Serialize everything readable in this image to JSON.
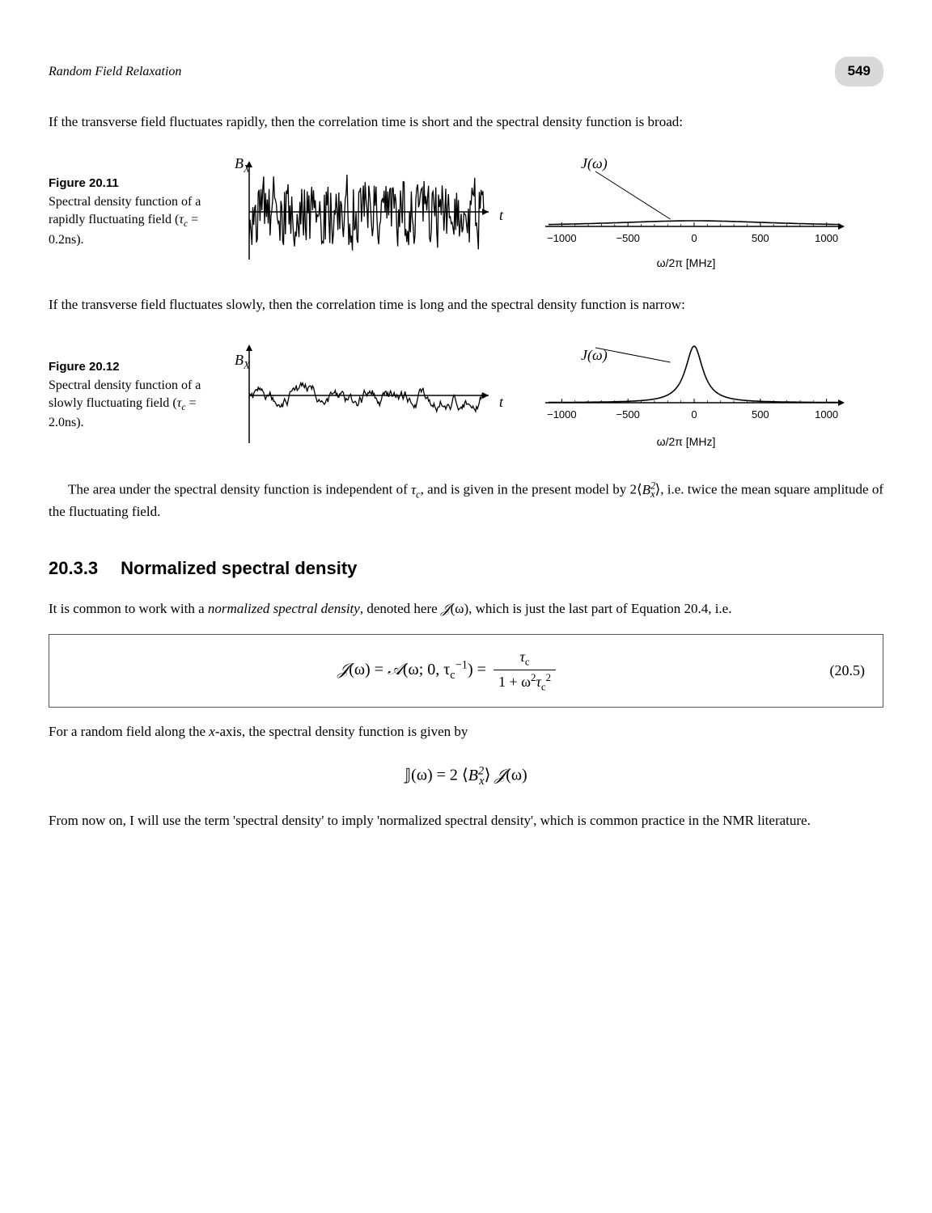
{
  "header": {
    "running_title": "Random Field Relaxation",
    "page_number": "549"
  },
  "para1": "If the transverse field fluctuates rapidly, then the correlation time is short and the spectral density function is broad:",
  "fig11": {
    "number": "Figure 20.11",
    "caption_line1": "Spectral density",
    "caption_line2": "function of a rapidly",
    "caption_line3": "fluctuating field",
    "caption_tau": "(τ_c = 0.2ns).",
    "noise_ylabel": "B",
    "noise_ysub": "X",
    "noise_xlabel": "t",
    "spec_ylabel": "J(ω)",
    "spec_xlabel": "ω/2π [MHz]",
    "ticks": [
      "−1000",
      "−500",
      "0",
      "500",
      "1000"
    ],
    "tick_vals": [
      -1000,
      -500,
      0,
      500,
      1000
    ],
    "tau_c_ns": 0.2,
    "noise_color": "#000000",
    "axis_color": "#000000",
    "spec_color": "#000000"
  },
  "para2": "If the transverse field fluctuates slowly, then the correlation time is long and the spectral density function is narrow:",
  "fig12": {
    "number": "Figure 20.12",
    "caption_line1": "Spectral density",
    "caption_line2": "function of a slowly",
    "caption_line3": "fluctuating field",
    "caption_tau": "(τ_c = 2.0ns).",
    "noise_ylabel": "B",
    "noise_ysub": "X",
    "noise_xlabel": "t",
    "spec_ylabel": "J(ω)",
    "spec_xlabel": "ω/2π [MHz]",
    "ticks": [
      "−1000",
      "−500",
      "0",
      "500",
      "1000"
    ],
    "tick_vals": [
      -1000,
      -500,
      0,
      500,
      1000
    ],
    "tau_c_ns": 2.0
  },
  "para3_pre": "The area under the spectral density function is independent of ",
  "para3_tau": "τ",
  "para3_tausub": "c",
  "para3_mid": ", and is given in the present model by 2⟨",
  "para3_B": "B",
  "para3_Bsub": "x",
  "para3_Bsup": "2",
  "para3_post": "⟩, i.e. twice the mean square amplitude of the fluctuating field.",
  "section": {
    "num": "20.3.3",
    "title": "Normalized spectral density"
  },
  "para4_pre": "It is common to work with a ",
  "para4_em": "normalized spectral density",
  "para4_mid": ", denoted here ",
  "para4_J": "𝒥",
  "para4_arg": "(ω)",
  "para4_post": ", which is just the last part of Equation 20.4, i.e.",
  "eq_box": {
    "eq_number": "(20.5)",
    "lhs_J": "𝒥",
    "lhs_arg": "(ω) = ",
    "A_sym": "𝒜",
    "A_arg_pre": "(ω; 0, τ",
    "A_arg_sub": "c",
    "A_arg_sup": "−1",
    "A_arg_post": ") = ",
    "frac_num_pre": "τ",
    "frac_num_sub": "c",
    "frac_den_pre": "1 + ω",
    "frac_den_sup1": "2",
    "frac_den_mid": "τ",
    "frac_den_sub": "c",
    "frac_den_sup2": "2"
  },
  "para5_pre": "For a random field along the ",
  "para5_x": "x",
  "para5_post": "-axis, the spectral density function is given by",
  "display_eq": {
    "J_sym": "𝕁",
    "arg": "(ω) = 2 ⟨",
    "B": "B",
    "Bsub": "x",
    "Bsup": "2",
    "close": "⟩ ",
    "calJ": "𝒥",
    "calJarg": "(ω)"
  },
  "para6": "From now on, I will use the term 'spectral density' to imply 'normalized spectral density', which is common practice in the NMR literature."
}
